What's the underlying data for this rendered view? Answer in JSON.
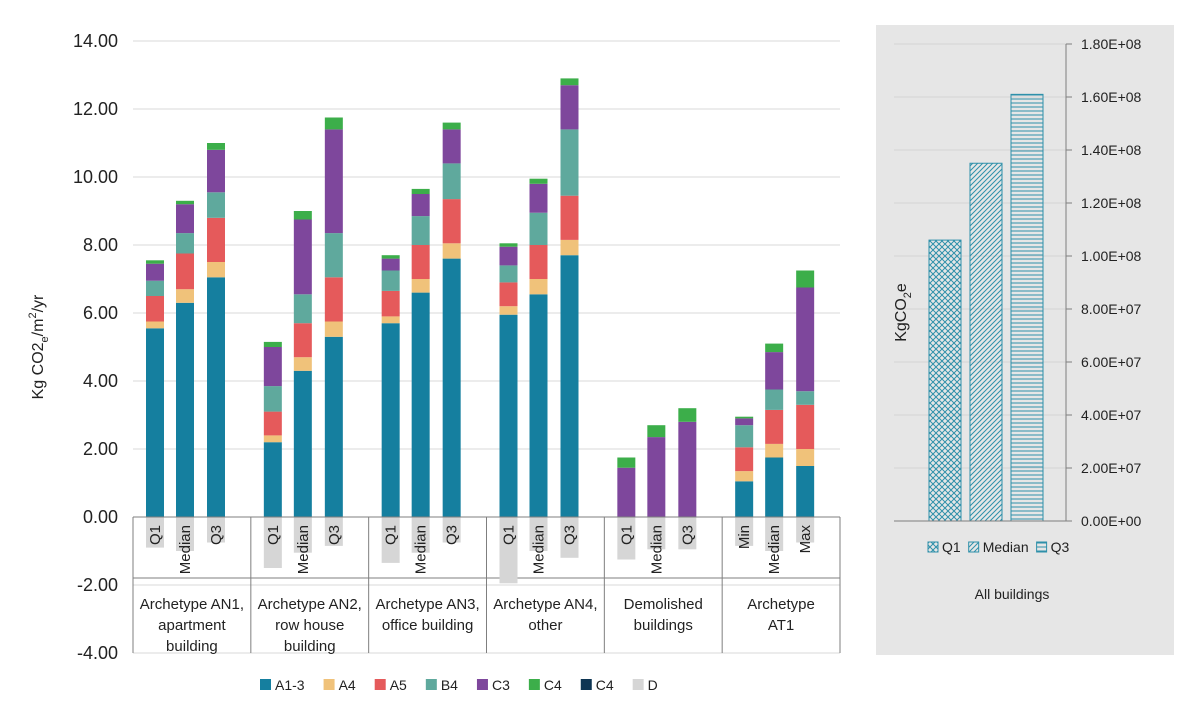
{
  "chart_data": [
    {
      "type": "bar",
      "stacked": true,
      "ylabel": "Kg CO2e/m²/yr",
      "ylabel_parts": [
        "Kg CO2",
        "e",
        "/m",
        "2",
        "/yr"
      ],
      "ylim": [
        -4,
        14
      ],
      "yticks": [
        14,
        12,
        10,
        8,
        6,
        4,
        2,
        0,
        -2,
        -4
      ],
      "ytick_labels": [
        "14.00",
        "12.00",
        "10.00",
        "8.00",
        "6.00",
        "4.00",
        "2.00",
        "0.00",
        "-2.00",
        "-4.00"
      ],
      "groups": [
        {
          "label": [
            "Archetype AN1,",
            "apartment",
            "building"
          ],
          "bars": [
            "Q1",
            "Median",
            "Q3"
          ]
        },
        {
          "label": [
            "Archetype AN2,",
            "row house",
            "building"
          ],
          "bars": [
            "Q1",
            "Median",
            "Q3"
          ]
        },
        {
          "label": [
            "Archetype AN3,",
            "office building"
          ],
          "bars": [
            "Q1",
            "Median",
            "Q3"
          ]
        },
        {
          "label": [
            "Archetype AN4,",
            "other"
          ],
          "bars": [
            "Q1",
            "Median",
            "Q3"
          ]
        },
        {
          "label": [
            "Demolished",
            "buildings"
          ],
          "bars": [
            "Q1",
            "Median",
            "Q3"
          ]
        },
        {
          "label": [
            "Archetype",
            "AT1"
          ],
          "bars": [
            "Min",
            "Median",
            "Max"
          ]
        }
      ],
      "series": [
        {
          "name": "A1-3",
          "color": "#157f9f",
          "values": [
            5.55,
            6.3,
            7.05,
            2.2,
            4.3,
            5.3,
            5.7,
            6.6,
            7.6,
            5.95,
            6.55,
            7.7,
            0,
            0,
            0,
            1.05,
            1.75,
            1.5
          ]
        },
        {
          "name": "A4",
          "color": "#f0c27a",
          "values": [
            0.2,
            0.4,
            0.45,
            0.2,
            0.4,
            0.45,
            0.2,
            0.4,
            0.45,
            0.25,
            0.45,
            0.45,
            0,
            0,
            0,
            0.3,
            0.4,
            0.5
          ]
        },
        {
          "name": "A5",
          "color": "#e55a5b",
          "values": [
            0.75,
            1.05,
            1.3,
            0.7,
            1.0,
            1.3,
            0.75,
            1.0,
            1.3,
            0.7,
            1.0,
            1.3,
            0,
            0,
            0,
            0.7,
            1.0,
            1.3
          ]
        },
        {
          "name": "B4",
          "color": "#5fa99d",
          "values": [
            0.45,
            0.6,
            0.75,
            0.75,
            0.85,
            1.3,
            0.6,
            0.85,
            1.05,
            0.5,
            0.95,
            1.95,
            0,
            0,
            0,
            0.65,
            0.6,
            0.4
          ]
        },
        {
          "name": "C3",
          "color": "#7e479c",
          "values": [
            0.5,
            0.85,
            1.25,
            1.15,
            2.2,
            3.05,
            0.35,
            0.65,
            1.0,
            0.55,
            0.85,
            1.3,
            1.45,
            2.35,
            2.8,
            0.2,
            1.1,
            3.05
          ]
        },
        {
          "name": "C4",
          "color": "#3cae4a",
          "values": [
            0.1,
            0.1,
            0.2,
            0.15,
            0.25,
            0.35,
            0.1,
            0.15,
            0.2,
            0.1,
            0.15,
            0.2,
            0.3,
            0.35,
            0.4,
            0.05,
            0.25,
            0.5
          ]
        },
        {
          "name": "C4",
          "color": "#0e3553",
          "values": [
            0,
            0,
            0,
            0,
            0,
            0,
            0,
            0,
            0,
            0,
            0,
            0,
            0,
            0,
            0,
            0,
            0,
            0
          ]
        },
        {
          "name": "D",
          "color": "#d6d6d6",
          "values": [
            -0.9,
            -1.0,
            -0.75,
            -1.5,
            -1.05,
            -0.85,
            -1.35,
            -1.05,
            -0.75,
            -1.95,
            -1.0,
            -1.2,
            -1.25,
            -0.95,
            -0.95,
            -0.85,
            -1.0,
            -0.75
          ]
        }
      ],
      "legend": [
        "A1-3",
        "A4",
        "A5",
        "B4",
        "C3",
        "C4",
        "C4",
        "D"
      ],
      "legend_position": "bottom"
    },
    {
      "type": "bar",
      "title": "All buildings",
      "ylabel": "KgCO2e",
      "ylabel_parts": [
        "KgCO",
        "2",
        "e"
      ],
      "ylim": [
        0,
        180000000
      ],
      "yticks": [
        0,
        20000000,
        40000000,
        60000000,
        80000000,
        100000000,
        120000000,
        140000000,
        160000000,
        180000000
      ],
      "ytick_labels": [
        "0.00E+00",
        "2.00E+07",
        "4.00E+07",
        "6.00E+07",
        "8.00E+07",
        "1.00E+08",
        "1.20E+08",
        "1.40E+08",
        "1.60E+08",
        "1.80E+08"
      ],
      "categories": [
        "Q1",
        "Median",
        "Q3"
      ],
      "values": [
        106000000,
        135000000,
        161000000
      ],
      "color": "#2e90aa",
      "legend": [
        "Q1",
        "Median",
        "Q3"
      ],
      "xlabel": "All buildings"
    }
  ]
}
